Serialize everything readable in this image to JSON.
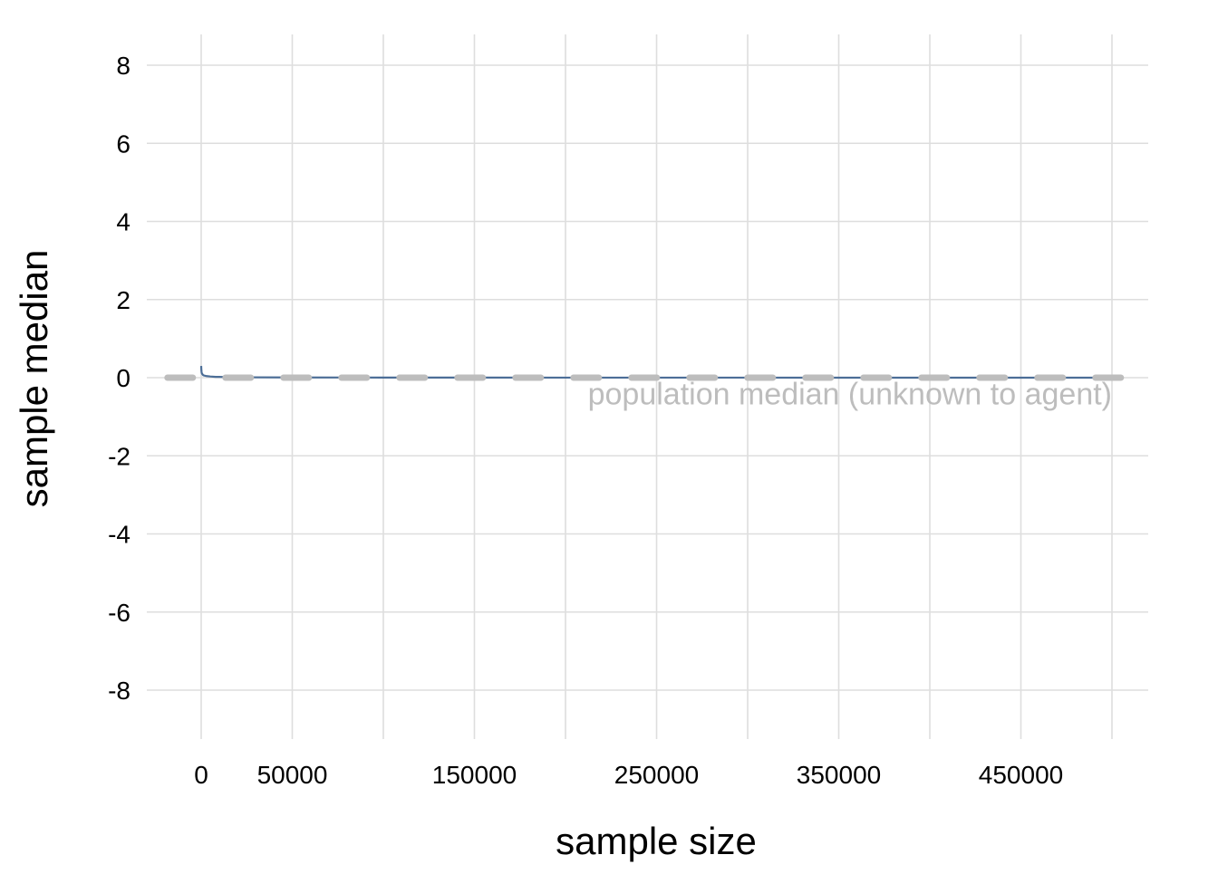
{
  "chart_data": {
    "type": "line",
    "title": "",
    "xlabel": "sample size",
    "ylabel": "sample median",
    "xlim": [
      -20000,
      505000
    ],
    "ylim": [
      -9,
      8.8
    ],
    "x_ticks": [
      0,
      50000,
      150000,
      250000,
      350000,
      450000
    ],
    "x_gridlines": [
      0,
      50000,
      100000,
      150000,
      200000,
      250000,
      300000,
      350000,
      400000,
      450000,
      500000
    ],
    "y_ticks": [
      -8,
      -6,
      -4,
      -2,
      0,
      2,
      4,
      6,
      8
    ],
    "grid": true,
    "legend": "none",
    "series": [
      {
        "color": "#4c6e97",
        "x": [
          1,
          50,
          100,
          200,
          300,
          500,
          800,
          1200,
          2000,
          3000,
          5000,
          8000,
          10000,
          20000,
          50000,
          100000,
          150000,
          200000,
          250000,
          300000,
          350000,
          400000,
          450000,
          500000
        ],
        "y": [
          0.3,
          0.25,
          0.2,
          0.15,
          0.12,
          0.1,
          0.08,
          0.06,
          0.05,
          0.04,
          0.03,
          0.02,
          0.02,
          0.01,
          0.005,
          0.003,
          0.002,
          0.0015,
          0.001,
          0.001,
          0.0008,
          0.0007,
          0.0006,
          0.0005
        ]
      }
    ],
    "reference_line": {
      "y": 0,
      "style": "dashed",
      "color": "#bdbdbd",
      "x_range": [
        -20000,
        505000
      ]
    },
    "annotations": [
      {
        "text": "population median (unknown to agent)",
        "x": 500000,
        "y": -0.4,
        "color": "#bdbdbd",
        "anchor": "end"
      }
    ]
  }
}
